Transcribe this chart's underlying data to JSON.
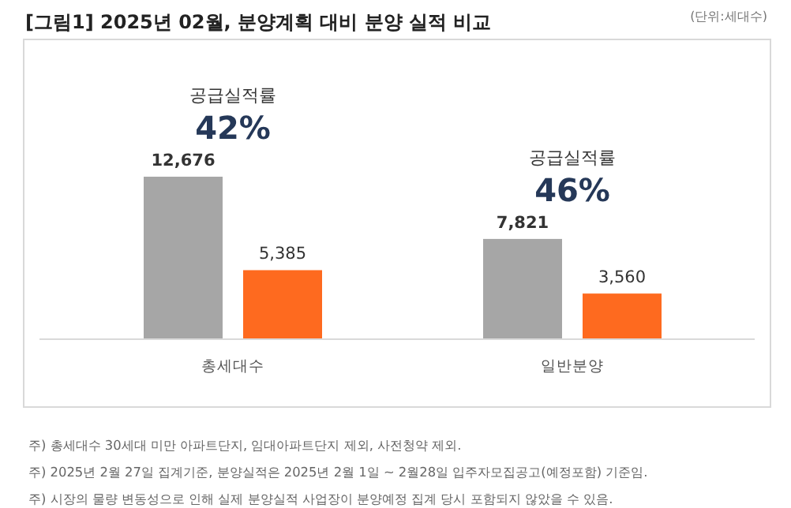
{
  "chart_data": {
    "type": "bar",
    "title": "[그림1] 2025년 02월, 분양계획 대비 분양 실적 비교",
    "categories": [
      "총세대수",
      "일반분양"
    ],
    "series": [
      {
        "color": "#a6a6a6",
        "values": [
          12676,
          7821
        ],
        "value_labels": [
          "12,676",
          "7,821"
        ]
      },
      {
        "color": "#fe6a1f",
        "values": [
          5385,
          3560
        ],
        "value_labels": [
          "5,385",
          "3,560"
        ]
      }
    ],
    "annotations": [
      "(단위:세대수)",
      "주) 총세대수 30세대 미만 아파트단지, 임대아파트단지 제외, 사전청약 제외.",
      "주) 2025년 2월 27일 집계기준, 분양실적은 2025년 2월 1일 ~ 2월28일 입주자모집공고(예정포함) 기준임.",
      "주) 시장의 물량 변동성으로 인해 실제 분양실적 사업장이 분양예정 집계 당시 포함되지 않았을 수 있음.",
      "공급실적률",
      "42%",
      "공급실적률",
      "46%"
    ]
  }
}
